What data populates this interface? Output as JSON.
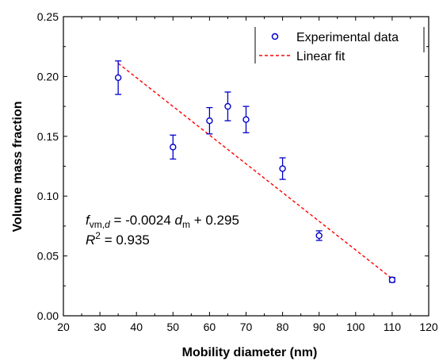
{
  "chart_data": {
    "type": "scatter",
    "title": "",
    "xlabel": "Mobility diameter (nm)",
    "ylabel": "Volume mass fraction",
    "xlim": [
      20,
      120
    ],
    "ylim": [
      0.0,
      0.25
    ],
    "x_ticks": [
      "20",
      "30",
      "40",
      "50",
      "60",
      "70",
      "80",
      "90",
      "100",
      "110",
      "120"
    ],
    "y_ticks": [
      "0.00",
      "0.05",
      "0.10",
      "0.15",
      "0.20",
      "0.25"
    ],
    "grid": false,
    "legend_position": "top-right",
    "series": [
      {
        "name": "Experimental data",
        "marker": "open-circle",
        "color": "#0000cc",
        "points": [
          {
            "x": 35,
            "y": 0.199,
            "err": 0.014
          },
          {
            "x": 50,
            "y": 0.141,
            "err": 0.01
          },
          {
            "x": 60,
            "y": 0.163,
            "err": 0.011
          },
          {
            "x": 65,
            "y": 0.175,
            "err": 0.012
          },
          {
            "x": 70,
            "y": 0.164,
            "err": 0.011
          },
          {
            "x": 80,
            "y": 0.123,
            "err": 0.009
          },
          {
            "x": 90,
            "y": 0.067,
            "err": 0.004
          },
          {
            "x": 110,
            "y": 0.03,
            "err": 0.002
          }
        ]
      },
      {
        "name": "Linear fit",
        "style": "dashed",
        "color": "#ff0000",
        "x": [
          35,
          110
        ],
        "y": [
          0.211,
          0.031
        ]
      }
    ],
    "annotation": {
      "eq_f": "f",
      "eq_sub": "vm,",
      "eq_sub_italic": "d",
      "eq_mid": " = -0.0024 ",
      "eq_d": "d",
      "eq_dsub": "m",
      "eq_end": " + 0.295",
      "r_letter": "R",
      "r_sup": "2",
      "r_end": " = 0.935"
    }
  }
}
